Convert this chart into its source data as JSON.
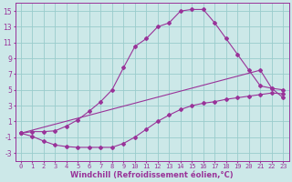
{
  "bg_color": "#cce8e8",
  "line_color": "#993399",
  "grid_color": "#99cccc",
  "xlabel": "Windchill (Refroidissement éolien,°C)",
  "xlabel_fontsize": 6,
  "xtick_fontsize": 5,
  "ytick_fontsize": 5.5,
  "xlim": [
    -0.5,
    23.5
  ],
  "ylim": [
    -4,
    16
  ],
  "yticks": [
    -3,
    -1,
    1,
    3,
    5,
    7,
    9,
    11,
    13,
    15
  ],
  "xticks": [
    0,
    1,
    2,
    3,
    4,
    5,
    6,
    7,
    8,
    9,
    10,
    11,
    12,
    13,
    14,
    15,
    16,
    17,
    18,
    19,
    20,
    21,
    22,
    23
  ],
  "curve1_x": [
    0,
    1,
    2,
    3,
    4,
    5,
    6,
    7,
    8,
    9,
    10,
    11,
    12,
    13,
    14,
    15,
    16,
    17,
    18,
    19,
    20,
    21,
    22,
    23
  ],
  "curve1_y": [
    -0.5,
    -0.3,
    -0.3,
    -0.2,
    0.4,
    1.2,
    2.3,
    3.5,
    5.0,
    7.8,
    10.5,
    11.5,
    13.0,
    13.5,
    15.0,
    15.2,
    15.2,
    13.5,
    11.5,
    9.5,
    7.5,
    5.5,
    5.2,
    4.0
  ],
  "curve2_x": [
    0,
    21,
    22,
    23
  ],
  "curve2_y": [
    -0.5,
    7.5,
    5.2,
    5.0
  ],
  "curve3_x": [
    0,
    1,
    2,
    3,
    4,
    5,
    6,
    7,
    8,
    9,
    10,
    11,
    12,
    13,
    14,
    15,
    16,
    17,
    18,
    19,
    20,
    21,
    22,
    23
  ],
  "curve3_y": [
    -0.5,
    -0.9,
    -1.5,
    -2.0,
    -2.2,
    -2.3,
    -2.3,
    -2.3,
    -2.3,
    -1.8,
    -1.0,
    0.0,
    1.0,
    1.8,
    2.5,
    3.0,
    3.3,
    3.5,
    3.8,
    4.0,
    4.2,
    4.4,
    4.6,
    4.5
  ],
  "marker": "D",
  "marker_size": 2.0,
  "linewidth": 0.8
}
